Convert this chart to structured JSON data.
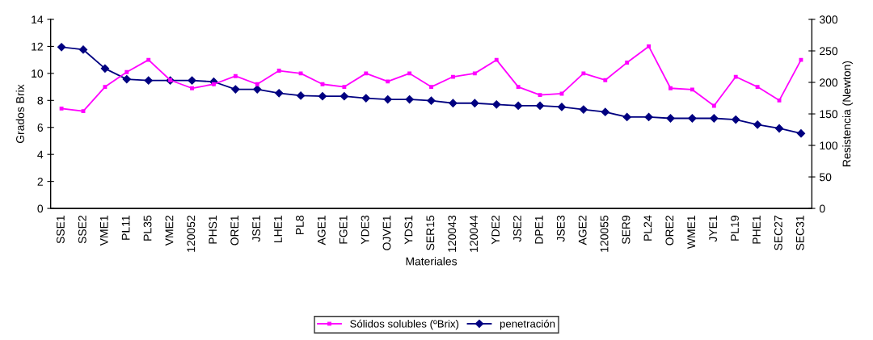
{
  "chart_data": {
    "type": "line",
    "xlabel": "Materiales",
    "ylabel": "Grados Brix",
    "y2label": "Resistencia (Newton)",
    "categories": [
      "SSE1",
      "SSE2",
      "VME1",
      "PL11",
      "PL35",
      "VME2",
      "120052",
      "PHS1",
      "ORE1",
      "JSE1",
      "LHE1",
      "PL8",
      "AGE1",
      "FGE1",
      "YDE3",
      "OJVE1",
      "YDS1",
      "SER15",
      "120043",
      "120044",
      "YDE2",
      "JSE2",
      "DPE1",
      "JSE3",
      "AGE2",
      "120055",
      "SER9",
      "PL24",
      "ORE2",
      "WME1",
      "JYE1",
      "PL19",
      "PHE1",
      "SEC27",
      "SEC31"
    ],
    "series": [
      {
        "name": "Sólidos solubles (ºBrix)",
        "color": "#ff00ff",
        "marker": "square",
        "values": [
          7.4,
          7.2,
          9.0,
          10.1,
          11.0,
          9.5,
          8.9,
          9.2,
          9.8,
          9.2,
          10.2,
          10.0,
          9.2,
          9.0,
          10.0,
          9.4,
          10.0,
          9.0,
          9.75,
          10.0,
          11.0,
          9.0,
          8.4,
          8.5,
          10.0,
          9.5,
          10.8,
          12.0,
          8.9,
          8.8,
          7.6,
          9.75,
          9.0,
          8.0,
          11.0
        ]
      },
      {
        "name": "penetración",
        "color": "#000080",
        "marker": "diamond",
        "axis": "y2",
        "values": [
          256,
          252,
          222,
          205,
          203,
          203,
          203,
          201,
          189,
          189,
          183,
          179,
          178,
          178,
          175,
          173,
          173,
          171,
          167,
          167,
          165,
          163,
          163,
          161,
          157,
          153,
          145,
          145,
          143,
          143,
          143,
          141,
          133,
          127,
          119
        ]
      }
    ],
    "ylim": [
      0,
      14
    ],
    "yticks": [
      0,
      2,
      4,
      6,
      8,
      10,
      12,
      14
    ],
    "y2lim": [
      0,
      300
    ],
    "y2ticks": [
      0,
      50,
      100,
      150,
      200,
      250,
      300
    ],
    "grid": false,
    "legend": "bottom",
    "line_style": "solid"
  }
}
